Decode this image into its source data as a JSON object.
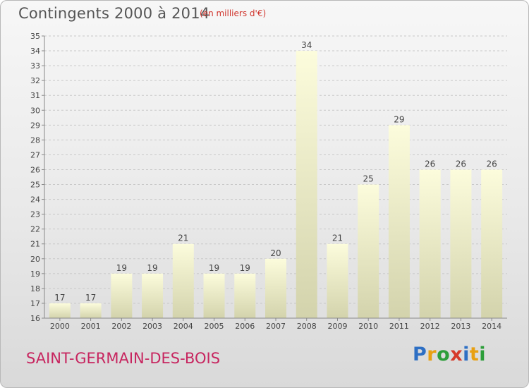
{
  "title": "Contingents 2000 à 2014",
  "unit_note": "(en milliers d'€)",
  "commune": "SAINT-GERMAIN-DES-BOIS",
  "logo": {
    "letters": [
      "P",
      "r",
      "o",
      "x",
      "i",
      "t",
      "i"
    ],
    "colors": [
      "#2d6fc4",
      "#e8a012",
      "#2d9e3a",
      "#d63a2a",
      "#2d6fc4",
      "#e8a012",
      "#2d9e3a"
    ]
  },
  "colors": {
    "bar_top": "#fcfcdc",
    "bar_bottom": "#d3d3ac",
    "grid": "#c8c8c8",
    "axis": "#888888"
  },
  "chart_data": {
    "type": "bar",
    "categories": [
      "2000",
      "2001",
      "2002",
      "2003",
      "2004",
      "2005",
      "2006",
      "2007",
      "2008",
      "2009",
      "2010",
      "2011",
      "2012",
      "2013",
      "2014"
    ],
    "values": [
      17,
      17,
      19,
      19,
      21,
      19,
      19,
      20,
      34,
      21,
      25,
      29,
      26,
      26,
      26
    ],
    "ylim": [
      16,
      35
    ],
    "yticks": [
      16,
      17,
      18,
      19,
      20,
      21,
      22,
      23,
      24,
      25,
      26,
      27,
      28,
      29,
      30,
      31,
      32,
      33,
      34,
      35
    ],
    "grid": true,
    "title": "Contingents 2000 à 2014",
    "xlabel": "",
    "ylabel": ""
  }
}
